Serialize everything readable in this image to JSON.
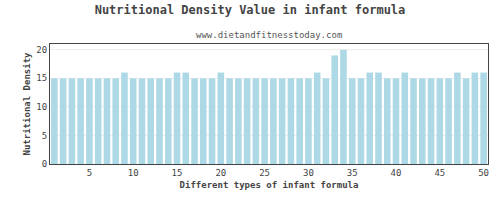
{
  "chart_data": {
    "type": "bar",
    "title": "Nutritional Density Value in infant formula",
    "subtitle": "www.dietandfitnesstoday.com",
    "xlabel": "Different types of infant formula",
    "ylabel": "Nutritional Density",
    "x": [
      1,
      2,
      3,
      4,
      5,
      6,
      7,
      8,
      9,
      10,
      11,
      12,
      13,
      14,
      15,
      16,
      17,
      18,
      19,
      20,
      21,
      22,
      23,
      24,
      25,
      26,
      27,
      28,
      29,
      30,
      31,
      32,
      33,
      34,
      35,
      36,
      37,
      38,
      39,
      40,
      41,
      42,
      43,
      44,
      45,
      46,
      47,
      48,
      49,
      50
    ],
    "values": [
      15,
      15,
      15,
      15,
      15,
      15,
      15,
      15,
      16,
      15,
      15,
      15,
      15,
      15,
      16,
      16,
      15,
      15,
      15,
      16,
      15,
      15,
      15,
      15,
      15,
      15,
      15,
      15,
      15,
      15,
      16,
      15,
      19,
      20,
      15,
      15,
      16,
      16,
      15,
      15,
      16,
      15,
      15,
      15,
      15,
      15,
      16,
      15,
      16,
      16
    ],
    "color": "#add8e6",
    "xlim": [
      0.5,
      50.5
    ],
    "xticks": [
      5,
      10,
      15,
      20,
      25,
      30,
      35,
      40,
      45,
      50
    ],
    "ylim": [
      0,
      21
    ],
    "yticks": [
      0,
      5,
      10,
      15,
      20
    ],
    "grid": true
  }
}
